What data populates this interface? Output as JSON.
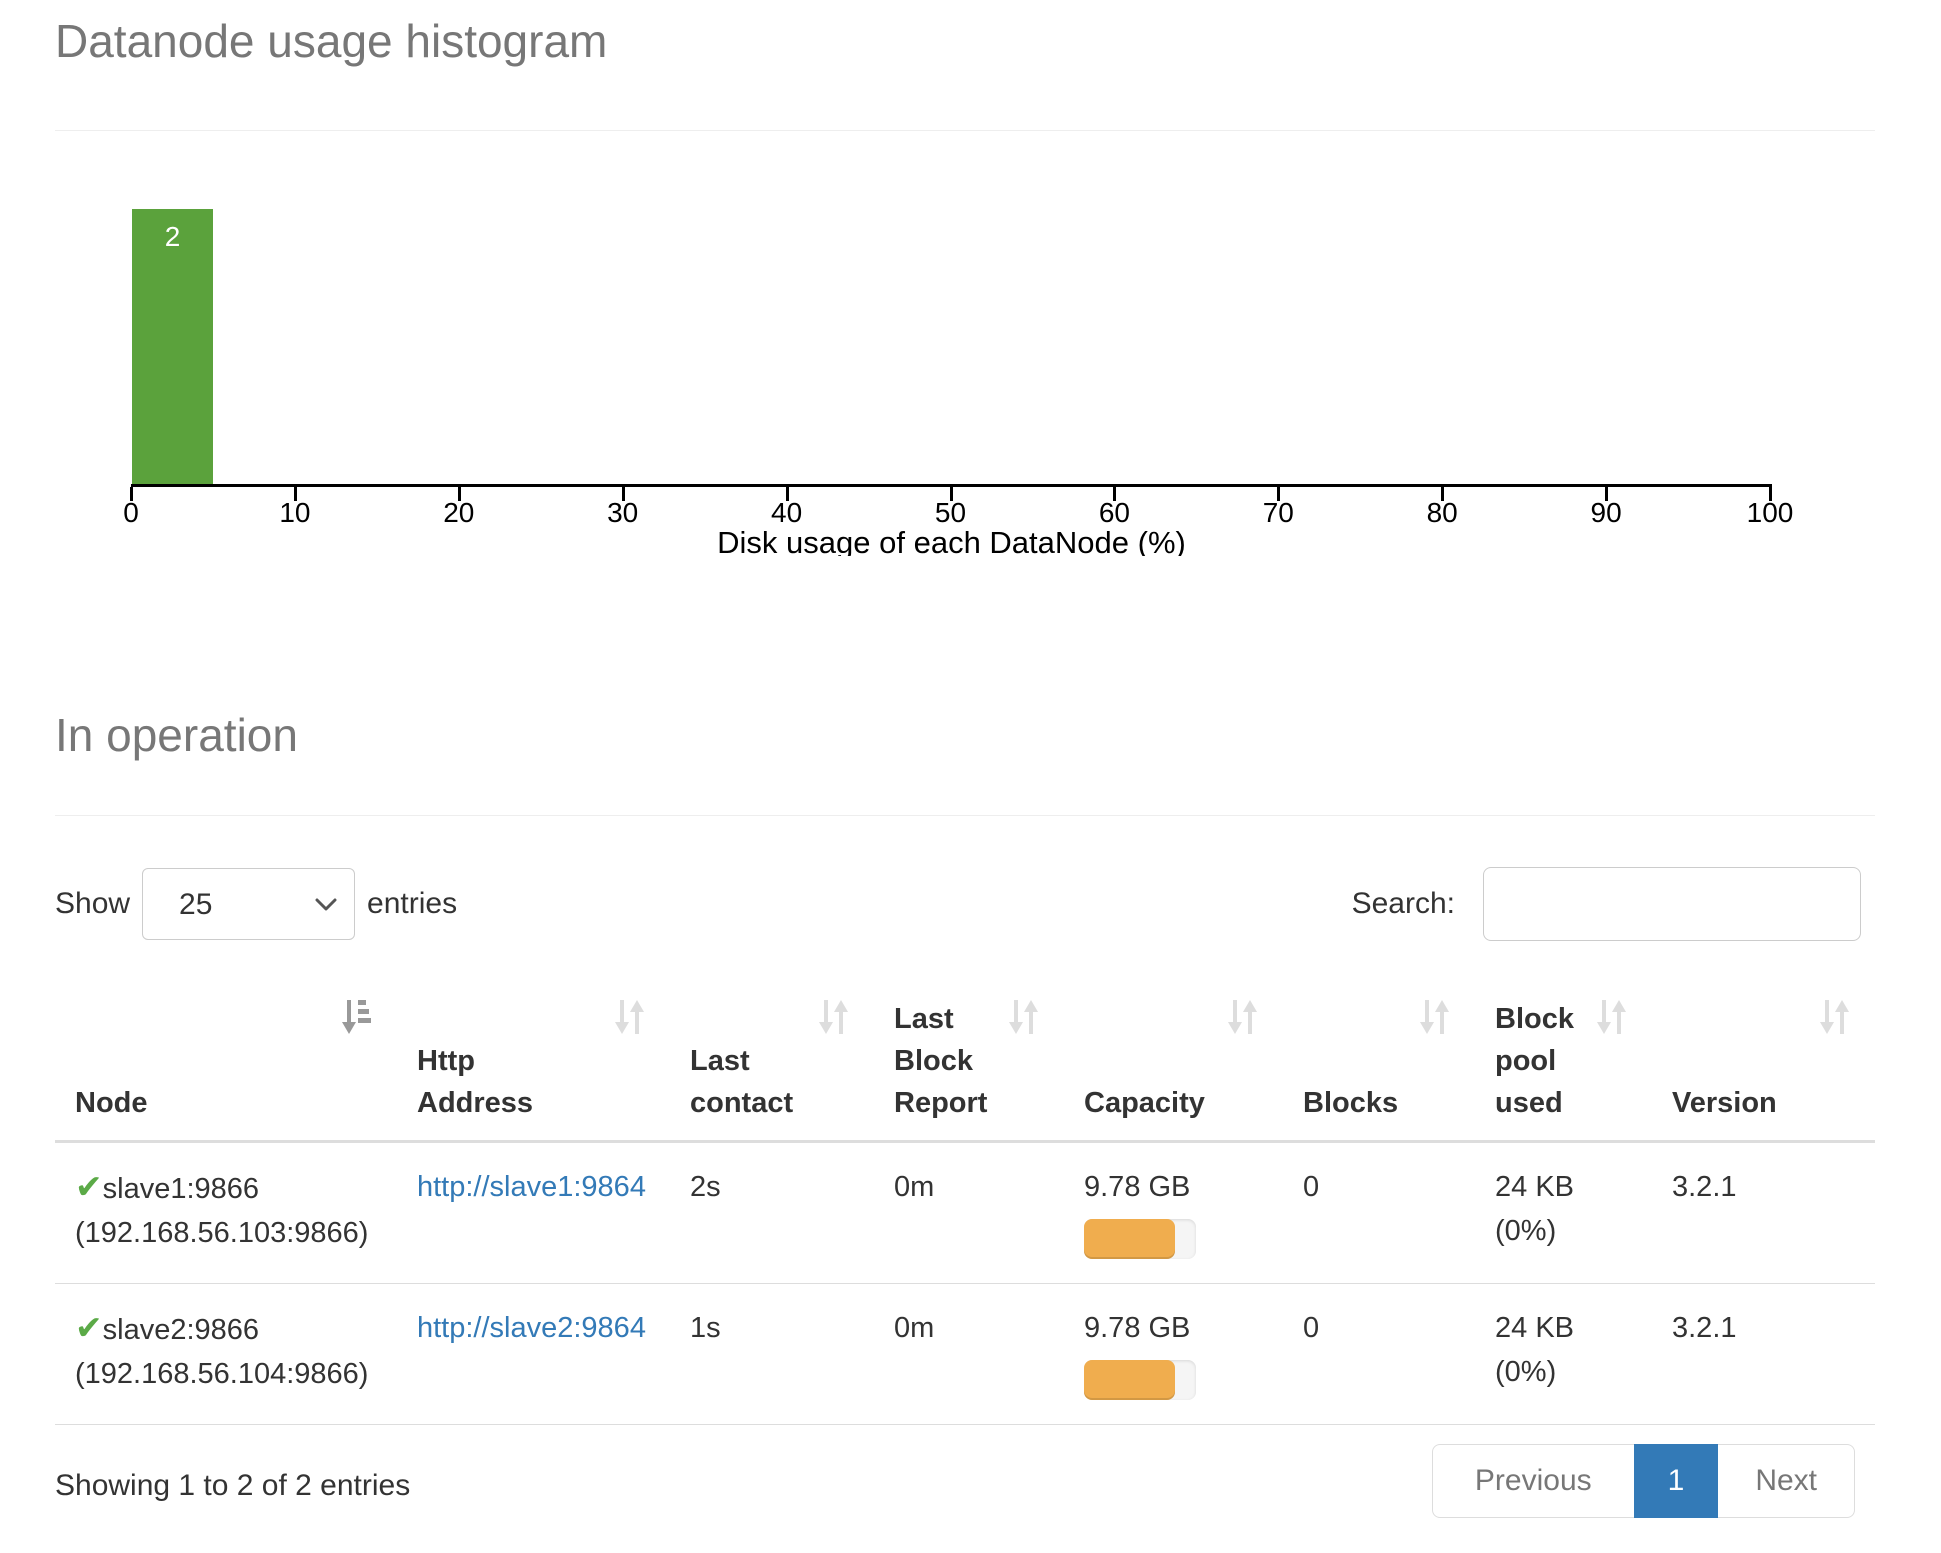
{
  "sections": {
    "histogram_title": "Datanode usage histogram",
    "in_operation_title": "In operation"
  },
  "chart_data": {
    "type": "bar",
    "title": "Datanode usage histogram",
    "xlabel": "Disk usage of each DataNode (%)",
    "ylabel": "",
    "xlim": [
      0,
      100
    ],
    "ylim": [
      0,
      2
    ],
    "xticks": [
      0,
      10,
      20,
      30,
      40,
      50,
      60,
      70,
      80,
      90,
      100
    ],
    "grid": false,
    "bins": [
      {
        "x0": 0,
        "x1": 5,
        "count": 2
      }
    ]
  },
  "controls": {
    "show_label": "Show",
    "page_length_value": "25",
    "entries_label": "entries",
    "search_label": "Search:",
    "search_value": ""
  },
  "table": {
    "columns": [
      {
        "label": "Node",
        "sort": "ascending"
      },
      {
        "label": "Http\nAddress",
        "sort": "none"
      },
      {
        "label": "Last\ncontact",
        "sort": "none"
      },
      {
        "label": "Last\nBlock\nReport",
        "sort": "none"
      },
      {
        "label": "Capacity",
        "sort": "none"
      },
      {
        "label": "Blocks",
        "sort": "none"
      },
      {
        "label": "Block\npool\nused",
        "sort": "none"
      },
      {
        "label": "Version",
        "sort": "none"
      }
    ],
    "rows": [
      {
        "status_icon": "check",
        "node_name": "slave1:9866",
        "node_ip": "(192.168.56.103:9866)",
        "http_address": "http://slave1:9864",
        "last_contact": "2s",
        "last_block_report": "0m",
        "capacity": "9.78 GB",
        "capacity_used_pct": 81,
        "blocks": "0",
        "block_pool_used": "24 KB",
        "block_pool_pct": "(0%)",
        "version": "3.2.1"
      },
      {
        "status_icon": "check",
        "node_name": "slave2:9866",
        "node_ip": "(192.168.56.104:9866)",
        "http_address": "http://slave2:9864",
        "last_contact": "1s",
        "last_block_report": "0m",
        "capacity": "9.78 GB",
        "capacity_used_pct": 81,
        "blocks": "0",
        "block_pool_used": "24 KB",
        "block_pool_pct": "(0%)",
        "version": "3.2.1"
      }
    ]
  },
  "footer": {
    "info": "Showing 1 to 2 of 2 entries",
    "pagination": {
      "previous": "Previous",
      "current": "1",
      "next": "Next"
    }
  },
  "colors": {
    "heading_gray": "#777777",
    "bar_green": "#5ba23c",
    "check_green": "#5baa47",
    "link_blue": "#337ab7",
    "active_page_blue": "#337ab7",
    "progress_orange": "#f0ad4e",
    "border_gray": "#dddddd"
  }
}
